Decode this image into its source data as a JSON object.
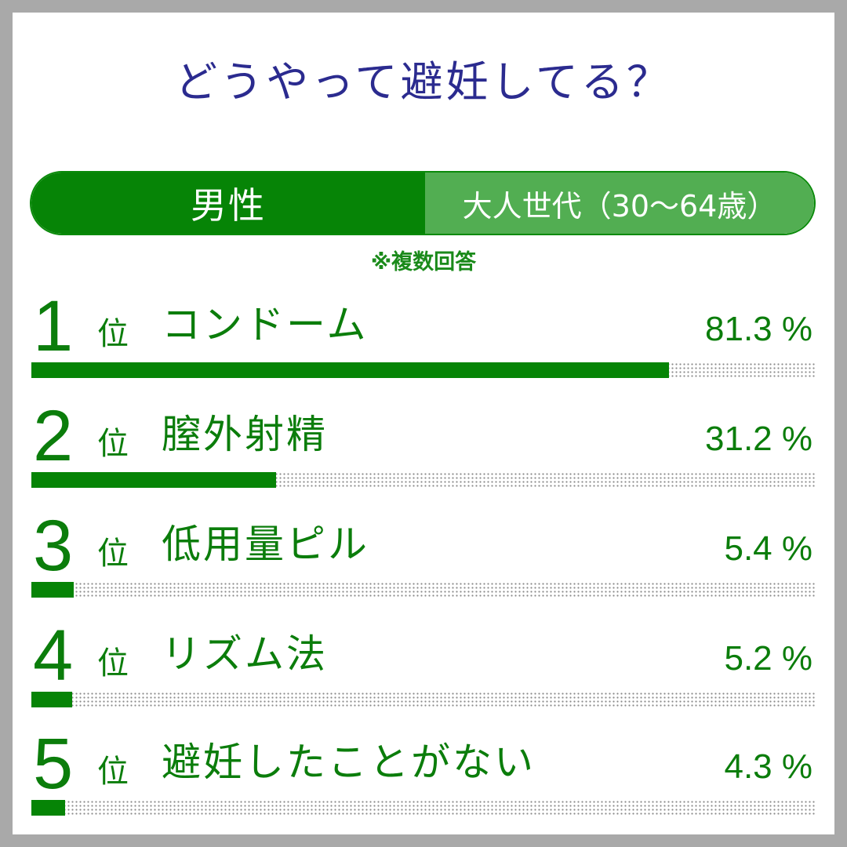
{
  "title": "どうやって避妊してる？",
  "segment": {
    "gender": "男性",
    "generation": "大人世代（30～64歳）"
  },
  "note": "※複数回答",
  "rank_suffix": "位",
  "colors": {
    "title": "#2b2b8f",
    "dark_green": "#068406",
    "light_green": "#52ae52",
    "text_green": "#0b7d0b"
  },
  "chart_data": {
    "type": "bar",
    "title": "どうやって避妊してる？",
    "xlabel": "",
    "ylabel": "",
    "ylim": [
      0,
      100
    ],
    "categories": [
      "コンドーム",
      "膣外射精",
      "低用量ピル",
      "リズム法",
      "避妊したことがない"
    ],
    "ranks": [
      "1",
      "2",
      "3",
      "4",
      "5"
    ],
    "values": [
      81.3,
      31.2,
      5.4,
      5.2,
      4.3
    ],
    "value_labels": [
      "81.3 %",
      "31.2 %",
      "5.4 %",
      "5.2 %",
      "4.3 %"
    ]
  }
}
